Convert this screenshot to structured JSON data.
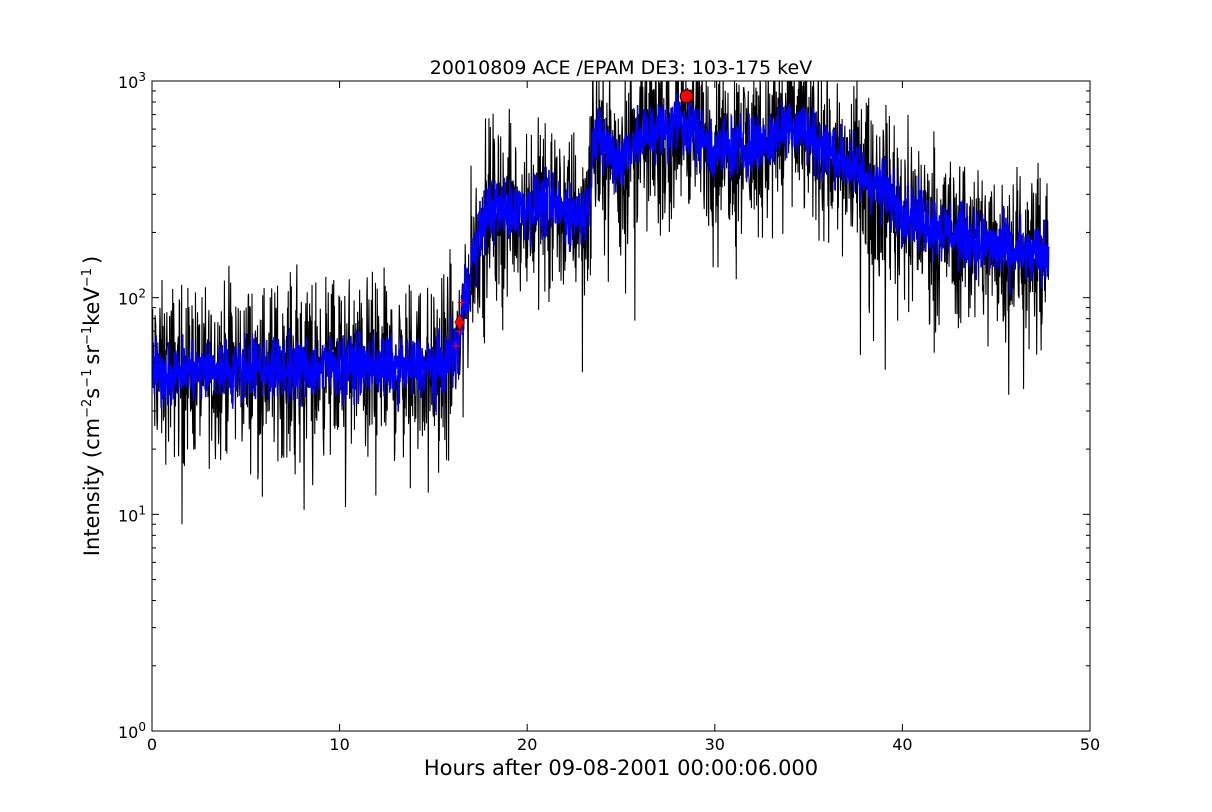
{
  "chart_data": {
    "type": "line",
    "title": "20010809 ACE /EPAM DE3: 103-175 keV",
    "xlabel": "Hours after 09-08-2001 00:00:06.000",
    "ylabel": "Intensity (cm⁻²s⁻¹sr⁻¹keV⁻¹)",
    "ylabel_parts": {
      "prefix": "Intensity (cm",
      "exp1": "−2",
      "s": "s",
      "exp2": "−1",
      "sr": "sr",
      "exp3": "−1",
      "kev": "keV",
      "exp4": "−1",
      "suffix": ")"
    },
    "xlim": [
      0,
      50
    ],
    "ylim": [
      1,
      1000
    ],
    "yscale": "log",
    "grid": false,
    "x_ticks": [
      0,
      10,
      20,
      30,
      40,
      50
    ],
    "x_tick_labels": [
      "0",
      "10",
      "20",
      "30",
      "40",
      "50"
    ],
    "y_ticks": [
      1,
      10,
      100,
      1000
    ],
    "y_tick_labels": [
      {
        "base": "10",
        "exp": "0"
      },
      {
        "base": "10",
        "exp": "1"
      },
      {
        "base": "10",
        "exp": "2"
      },
      {
        "base": "10",
        "exp": "3"
      }
    ],
    "colors": {
      "raw": "#000000",
      "smoothed": "#0000ff",
      "marker": "#ff0000"
    },
    "series": [
      {
        "role": "raw",
        "color": "#000000",
        "noise_factor": 1.55,
        "x": [
          0,
          2,
          4,
          6,
          8,
          10,
          12,
          14,
          15.5,
          16.3,
          16.6,
          17.0,
          17.5,
          18,
          19,
          20,
          21,
          22,
          23,
          23.3,
          23.5,
          24,
          25,
          25.5,
          26,
          27,
          27.5,
          28,
          28.5,
          29,
          29.5,
          30,
          31,
          32,
          33,
          34,
          35,
          36,
          37,
          38,
          39,
          40,
          41,
          42,
          43,
          44,
          45,
          46,
          47,
          47.8
        ],
        "y": [
          45,
          46,
          47,
          48,
          47,
          49,
          48,
          47,
          48,
          60,
          90,
          140,
          200,
          260,
          250,
          260,
          270,
          250,
          240,
          280,
          530,
          520,
          420,
          520,
          530,
          620,
          580,
          680,
          640,
          600,
          520,
          480,
          490,
          510,
          540,
          660,
          560,
          480,
          420,
          360,
          310,
          260,
          230,
          210,
          195,
          180,
          170,
          160,
          155,
          160
        ]
      },
      {
        "role": "smoothed",
        "color": "#0000ff",
        "noise_factor": 1.18,
        "x": [
          0,
          2,
          4,
          6,
          8,
          10,
          12,
          14,
          15.5,
          16.3,
          16.6,
          17.0,
          17.5,
          18,
          19,
          20,
          21,
          22,
          23,
          23.3,
          23.5,
          24,
          25,
          25.5,
          26,
          27,
          27.5,
          28,
          28.5,
          29,
          29.5,
          30,
          31,
          32,
          33,
          34,
          35,
          36,
          37,
          38,
          39,
          40,
          41,
          42,
          43,
          44,
          45,
          46,
          47,
          47.8
        ],
        "y": [
          45,
          46,
          47,
          48,
          47,
          49,
          48,
          47,
          48,
          60,
          90,
          140,
          200,
          260,
          250,
          260,
          270,
          250,
          240,
          280,
          530,
          520,
          420,
          520,
          530,
          620,
          580,
          680,
          640,
          600,
          520,
          480,
          490,
          510,
          540,
          660,
          560,
          480,
          420,
          360,
          310,
          260,
          230,
          210,
          195,
          180,
          170,
          160,
          155,
          160
        ]
      }
    ],
    "markers": [
      {
        "name": "onset",
        "shape": "diamond",
        "x": 16.4,
        "y": 77,
        "color": "#ff0000"
      },
      {
        "name": "peak",
        "shape": "circle",
        "x": 28.5,
        "y": 850,
        "color": "#ff0000"
      }
    ],
    "small_markers": [
      {
        "x": 16.2,
        "y": 60
      },
      {
        "x": 16.4,
        "y": 70
      },
      {
        "x": 16.5,
        "y": 95
      }
    ]
  }
}
